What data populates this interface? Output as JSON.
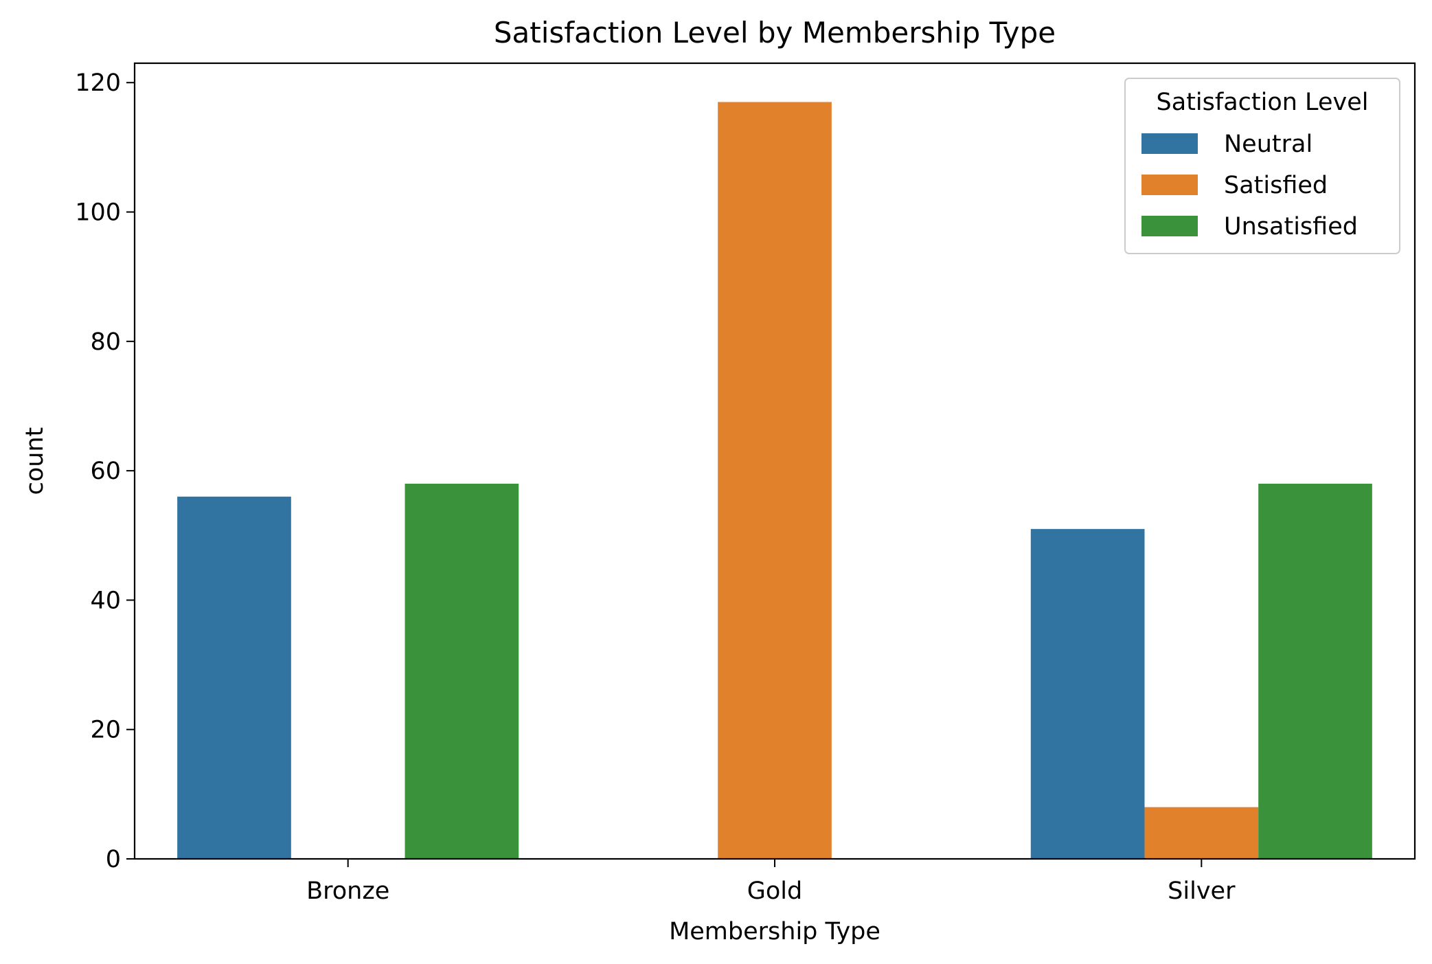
{
  "chart_data": {
    "type": "bar",
    "title": "Satisfaction Level by Membership Type",
    "xlabel": "Membership Type",
    "ylabel": "count",
    "categories": [
      "Bronze",
      "Gold",
      "Silver"
    ],
    "series": [
      {
        "name": "Neutral",
        "color": "#3274a1",
        "values": [
          56,
          0,
          51
        ]
      },
      {
        "name": "Satisfied",
        "color": "#e1812c",
        "values": [
          0,
          117,
          8
        ]
      },
      {
        "name": "Unsatisfied",
        "color": "#3a923a",
        "values": [
          58,
          0,
          58
        ]
      }
    ],
    "ylim": [
      0,
      123
    ],
    "yticks": [
      0,
      20,
      40,
      60,
      80,
      100,
      120
    ],
    "grid": false,
    "legend": {
      "title": "Satisfaction Level",
      "placement": "top-right"
    }
  }
}
